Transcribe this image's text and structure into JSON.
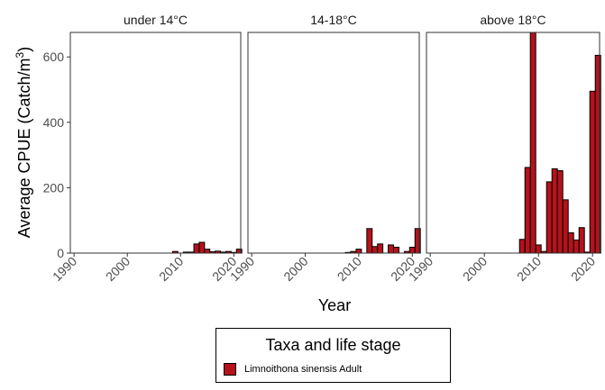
{
  "chart_data": {
    "type": "bar",
    "ylabel": "Average CPUE (Catch/m",
    "ylabel_sup": "3",
    "ylabel_close": ")",
    "xlabel": "Year",
    "ylim": [
      0,
      675
    ],
    "xlim": [
      1989.3,
      2021.3
    ],
    "yticks": [
      0,
      200,
      400,
      600
    ],
    "xticks": [
      1990,
      2000,
      2010,
      2020
    ],
    "bar_color": "#B5121B",
    "panels": [
      {
        "title": "under 14°C",
        "x": [
          2009,
          2010,
          2011,
          2012,
          2013,
          2014,
          2015,
          2016,
          2017,
          2018,
          2019,
          2020,
          2021
        ],
        "values": [
          5,
          0,
          3,
          3,
          28,
          33,
          12,
          4,
          6,
          3,
          5,
          2,
          12
        ]
      },
      {
        "title": "14-18°C",
        "x": [
          2008,
          2009,
          2010,
          2011,
          2012,
          2013,
          2014,
          2015,
          2016,
          2017,
          2018,
          2019,
          2020,
          2021
        ],
        "values": [
          2,
          5,
          12,
          0,
          75,
          20,
          28,
          0,
          25,
          18,
          0,
          5,
          18,
          75
        ]
      },
      {
        "title": "above 18°C",
        "x": [
          2007,
          2008,
          2009,
          2010,
          2011,
          2012,
          2013,
          2014,
          2015,
          2016,
          2017,
          2018,
          2019,
          2020,
          2021
        ],
        "values": [
          42,
          262,
          675,
          25,
          5,
          218,
          258,
          252,
          163,
          62,
          40,
          78,
          3,
          495,
          605
        ]
      }
    ],
    "legend": {
      "title": "Taxa and life stage",
      "entries": [
        "Limnoithona sinensis Adult"
      ]
    }
  }
}
